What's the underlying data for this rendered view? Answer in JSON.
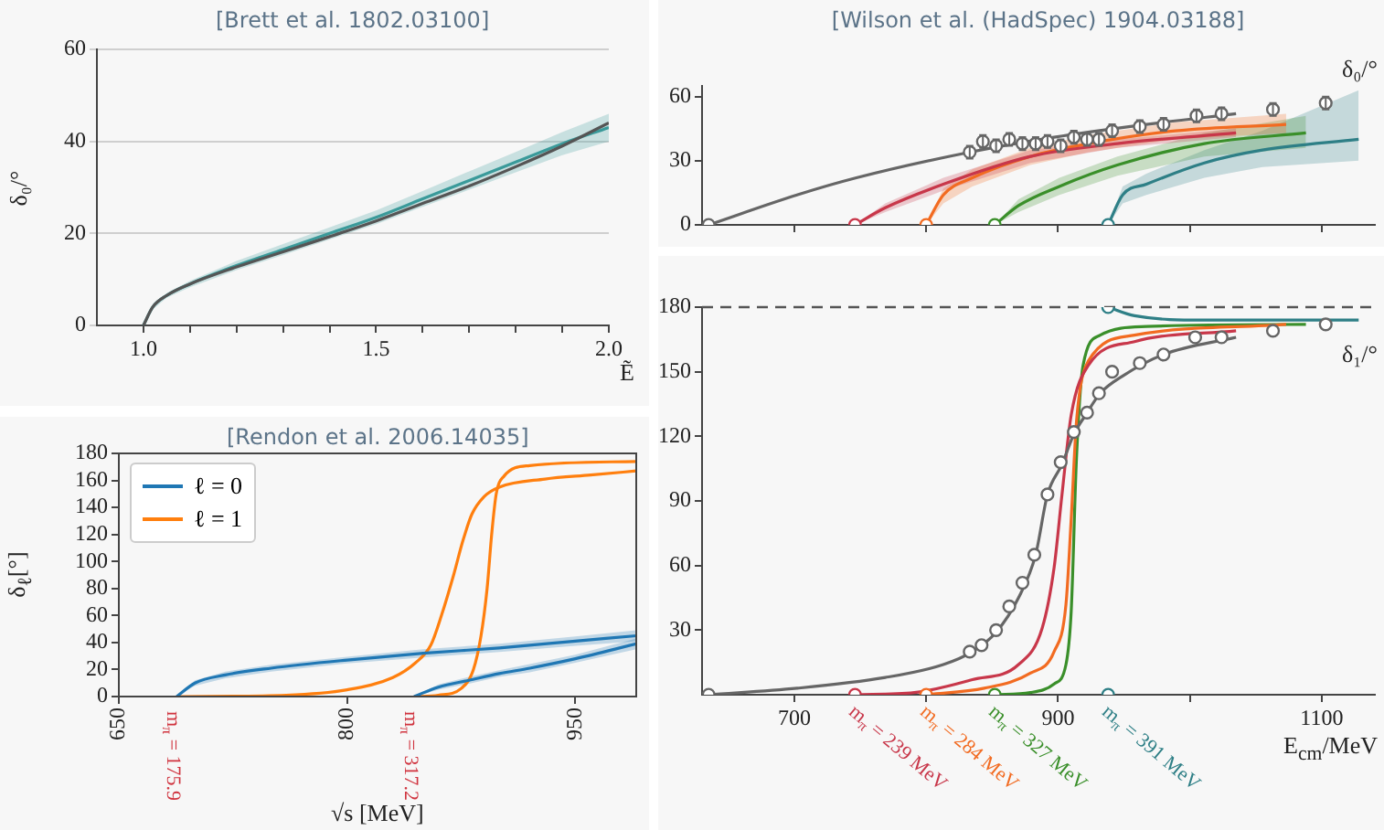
{
  "chart_data": [
    {
      "type": "line",
      "title": "[Brett et al. 1802.03100]",
      "xlabel": "Ẽ",
      "ylabel": "δ₀/°",
      "xlim": [
        0.9,
        2.0
      ],
      "ylim": [
        0,
        60
      ],
      "xticks": [
        {
          "value": 1,
          "label": "1.0"
        },
        {
          "value": 1.1,
          "label": null
        },
        {
          "value": 1.2,
          "label": null
        },
        {
          "value": 1.3,
          "label": null
        },
        {
          "value": 1.4,
          "label": null
        },
        1.5,
        {
          "value": 1.6,
          "label": null
        },
        {
          "value": 1.7,
          "label": null
        },
        {
          "value": 1.8,
          "label": null
        },
        {
          "value": 1.9,
          "label": null
        },
        {
          "value": 2,
          "label": "2.0"
        }
      ],
      "yticks": [
        0,
        20,
        40,
        60
      ],
      "grid": "y",
      "series": [
        {
          "color": "#555555",
          "x": [
            1.0,
            1.02,
            1.05,
            1.1,
            1.2,
            1.3,
            1.4,
            1.5,
            1.6,
            1.7,
            1.8,
            1.9,
            2.0
          ],
          "values": [
            0,
            4,
            6.5,
            9,
            12.7,
            16,
            19.3,
            22.7,
            26.5,
            30.3,
            34.5,
            39,
            44
          ]
        },
        {
          "color": "#3a9a9a",
          "x": [
            1.0,
            1.02,
            1.05,
            1.1,
            1.2,
            1.3,
            1.4,
            1.5,
            1.6,
            1.7,
            1.8,
            1.9,
            2.0
          ],
          "values": [
            0,
            4,
            6.5,
            9,
            13,
            16.5,
            20,
            23.5,
            27.5,
            31.5,
            35.5,
            39.5,
            43
          ],
          "lower": [
            0,
            3.5,
            6,
            8.3,
            12,
            15.3,
            18.7,
            22,
            25.8,
            29.5,
            33.3,
            37,
            40
          ],
          "upper": [
            0,
            4.5,
            7,
            9.7,
            14,
            17.7,
            21.3,
            25,
            29.2,
            33.5,
            37.7,
            42,
            46
          ]
        }
      ]
    },
    {
      "type": "line",
      "title": "[Rendon et al. 2006.14035]",
      "xlabel": "√s  [MeV]",
      "ylabel": "δ$_{ℓ}$[°]",
      "xlim": [
        650,
        990
      ],
      "ylim": [
        0,
        180
      ],
      "xticks": [
        650,
        800,
        950
      ],
      "yticks": [
        0,
        20,
        40,
        60,
        80,
        100,
        120,
        140,
        160,
        180
      ],
      "legend": "top left",
      "annotations": [
        {
          "text": "m$_{π}$ = 175.9",
          "x": 688,
          "y": 0
        },
        {
          "text": "m$_{π}$ = 317.2",
          "x": 844,
          "y": 0
        }
      ],
      "series": [
        {
          "name": "ℓ = 0",
          "color": "#1f77b4",
          "x": [
            688,
            700,
            720,
            750,
            800,
            850,
            900,
            950,
            990
          ],
          "values": [
            0,
            10,
            16,
            21,
            27,
            32,
            36,
            41,
            45
          ],
          "lower": [
            0,
            8,
            13.5,
            18.5,
            24.5,
            29,
            33,
            37.5,
            41
          ],
          "upper": [
            0,
            12,
            18.5,
            23.5,
            29.5,
            35,
            39,
            44.5,
            49
          ]
        },
        {
          "color": "#1f77b4",
          "x": [
            844,
            860,
            880,
            900,
            920,
            950,
            990
          ],
          "values": [
            0,
            7,
            12,
            17,
            21,
            28,
            39
          ],
          "lower": [
            0,
            5,
            9.5,
            14.5,
            18,
            25,
            35
          ],
          "upper": [
            0,
            9,
            14.5,
            19.5,
            24,
            31,
            43
          ]
        },
        {
          "name": "ℓ = 1",
          "color": "#ff7f0e",
          "x": [
            688,
            760,
            800,
            830,
            845,
            855,
            862,
            870,
            876,
            882,
            890,
            900,
            930,
            960,
            990
          ],
          "values": [
            0,
            1,
            5,
            14,
            25,
            38,
            60,
            90,
            115,
            135,
            148,
            155,
            161,
            164,
            167
          ]
        },
        {
          "color": "#ff7f0e",
          "x": [
            844,
            860,
            875,
            883,
            888,
            892,
            895,
            898,
            903,
            920,
            990
          ],
          "values": [
            0,
            1,
            6,
            20,
            45,
            80,
            120,
            150,
            163,
            171,
            174
          ]
        }
      ]
    },
    {
      "type": "line",
      "title": "[Wilson et al. (HadSpec) 1904.03188]",
      "ylabel": "δ₀/°",
      "xlim": [
        630,
        1140
      ],
      "ylim": [
        0,
        65
      ],
      "xticks": [
        {
          "value": 700,
          "label": null
        },
        {
          "value": 800,
          "label": null
        },
        {
          "value": 900,
          "label": null
        },
        {
          "value": 1000,
          "label": null
        },
        {
          "value": 1100,
          "label": null
        }
      ],
      "yticks": [
        0,
        30,
        60
      ],
      "tick_labels": "y",
      "series": [
        {
          "color": "#666666",
          "x": [
            635,
            702,
            747,
            833,
            897,
            967,
            1035
          ],
          "values": [
            0,
            14,
            22,
            34,
            41,
            47,
            52
          ]
        },
        {
          "color": "#c8374a",
          "x": [
            746,
            769,
            813,
            879,
            945,
            1035
          ],
          "values": [
            0,
            8,
            19,
            32,
            38,
            43
          ],
          "lower": [
            0,
            6,
            16,
            29,
            36,
            41
          ],
          "upper": [
            0,
            10,
            22,
            35,
            40,
            45
          ]
        },
        {
          "color": "#f26b21",
          "x": [
            800,
            813,
            835,
            879,
            923,
            989,
            1073
          ],
          "values": [
            0,
            14,
            22,
            32,
            38,
            44,
            47
          ],
          "lower": [
            0,
            10,
            18,
            28,
            34,
            40,
            43
          ],
          "upper": [
            0,
            17,
            26,
            36,
            42,
            48,
            52
          ]
        },
        {
          "color": "#3a8f2a",
          "x": [
            852,
            870,
            901,
            945,
            1011,
            1088
          ],
          "values": [
            0,
            9,
            18,
            28,
            38,
            43
          ],
          "lower": [
            0,
            6,
            14,
            23,
            32,
            36
          ],
          "upper": [
            0,
            12,
            22,
            32,
            43,
            51
          ]
        },
        {
          "color": "#2e7f86",
          "x": [
            938,
            949,
            967,
            1011,
            1055,
            1128
          ],
          "values": [
            0,
            14,
            19,
            29,
            35,
            40
          ],
          "lower": [
            0,
            10,
            14,
            22,
            27,
            30
          ],
          "upper": [
            0,
            18,
            24,
            35,
            44,
            63
          ]
        },
        {
          "type": "scatter",
          "marker": "circle",
          "color": "#666666",
          "x": [
            833,
            843,
            853,
            863,
            873,
            883,
            892,
            902,
            912,
            922,
            931,
            941,
            962,
            980,
            1005,
            1024,
            1063,
            1103
          ],
          "values": [
            34,
            39,
            37,
            40,
            38,
            38,
            39,
            37,
            41,
            40,
            40,
            44,
            46,
            47,
            51,
            52,
            54,
            57
          ],
          "errors": [
            3,
            3,
            3,
            3,
            3,
            3,
            3,
            3,
            3,
            3,
            3,
            3,
            3,
            3,
            3,
            3,
            3,
            3
          ]
        },
        {
          "type": "scatter",
          "marker": "circle",
          "x": [
            635,
            746,
            800,
            852,
            938
          ],
          "values": [
            0,
            0,
            0,
            0,
            0
          ],
          "colors": [
            "#666666",
            "#c8374a",
            "#f26b21",
            "#3a8f2a",
            "#2e7f86"
          ]
        }
      ]
    },
    {
      "type": "line",
      "xlabel": "E$_{cm}$/MeV",
      "ylabel": "δ₁/°",
      "xlim": [
        630,
        1140
      ],
      "ylim": [
        0,
        180
      ],
      "xticks": [
        700,
        {
          "value": 800,
          "label": null
        },
        900,
        {
          "value": 1000,
          "label": null
        },
        1100
      ],
      "yticks": [
        30,
        60,
        90,
        120,
        150,
        180
      ],
      "ref_lines": [
        {
          "axis": "y",
          "value": 180,
          "color": "#555555",
          "line_style": "dashed"
        }
      ],
      "annotations": [
        {
          "text": "m$_{π}$ = 239 MeV",
          "x": 746,
          "y": 0
        },
        {
          "text": "m$_{π}$ = 284 MeV",
          "x": 800,
          "y": 0
        },
        {
          "text": "m$_{π}$ = 327 MeV",
          "x": 852,
          "y": 0
        },
        {
          "text": "m$_{π}$ = 391 MeV",
          "x": 938,
          "y": 0
        }
      ],
      "series": [
        {
          "color": "#666666",
          "x": [
            635,
            702,
            769,
            813,
            835,
            853,
            870,
            883,
            892,
            903,
            912,
            921,
            932,
            949,
            980,
            1035
          ],
          "values": [
            0,
            3,
            8,
            14,
            20,
            29,
            45,
            65,
            93,
            107,
            121,
            130,
            140,
            148,
            158,
            166
          ]
        },
        {
          "color": "#c8374a",
          "x": [
            746,
            791,
            835,
            870,
            888,
            897,
            903,
            910,
            923,
            958,
            1035
          ],
          "values": [
            0,
            1,
            7,
            14,
            31,
            59,
            93,
            130,
            153,
            164,
            169
          ]
        },
        {
          "color": "#f26b21",
          "x": [
            800,
            844,
            879,
            897,
            906,
            910,
            914,
            923,
            958,
            1073
          ],
          "values": [
            0,
            3,
            10,
            20,
            42,
            82,
            127,
            155,
            167,
            172
          ]
        },
        {
          "color": "#3a8f2a",
          "x": [
            852,
            879,
            897,
            906,
            910,
            914,
            919,
            932,
            967,
            1088
          ],
          "values": [
            0,
            1,
            5,
            14,
            39,
            110,
            153,
            167,
            171,
            172
          ]
        },
        {
          "color": "#2e7f86",
          "x": [
            938,
            958,
            1011,
            1128
          ],
          "values": [
            180,
            176,
            174,
            174
          ]
        },
        {
          "type": "scatter",
          "marker": "circle",
          "color": "#666666",
          "x": [
            833,
            842,
            853,
            863,
            873,
            882,
            892,
            902,
            912,
            922,
            931,
            941,
            962,
            980,
            1004,
            1024,
            1063,
            1103
          ],
          "values": [
            20,
            23,
            30,
            41,
            52,
            65,
            93,
            108,
            122,
            131,
            140,
            150,
            154,
            158,
            166,
            166,
            169,
            172
          ]
        },
        {
          "type": "scatter",
          "marker": "circle",
          "x": [
            635,
            746,
            800,
            852,
            938,
            938
          ],
          "values": [
            0,
            0,
            0,
            0,
            0,
            180
          ],
          "colors": [
            "#666666",
            "#c8374a",
            "#f26b21",
            "#3a8f2a",
            "#2e7f86",
            "#2e7f86"
          ]
        }
      ]
    }
  ]
}
